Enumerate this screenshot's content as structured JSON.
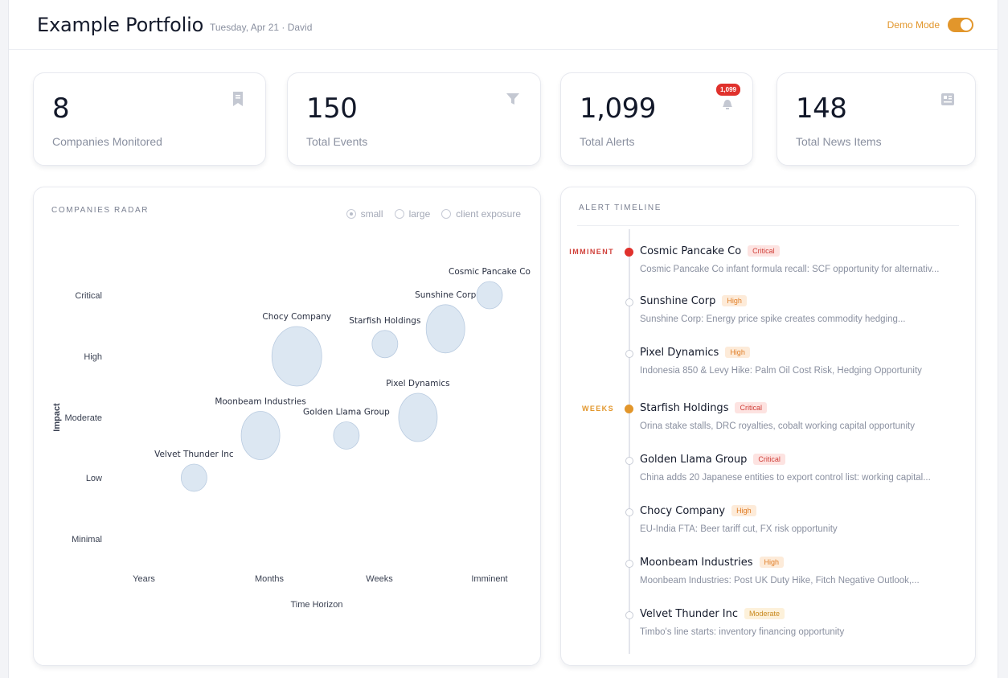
{
  "header": {
    "title": "Example Portfolio",
    "subtitle": "Tuesday, Apr 21 · David",
    "demo_label": "Demo Mode",
    "demo_on": true
  },
  "stats": [
    {
      "value": "8",
      "label": "Companies Monitored",
      "icon": "bookmark-icon"
    },
    {
      "value": "150",
      "label": "Total Events",
      "icon": "filter-icon"
    },
    {
      "value": "1,099",
      "label": "Total Alerts",
      "icon": "alert-icon",
      "badge": "1,099"
    },
    {
      "value": "148",
      "label": "Total News Items",
      "icon": "newspaper-icon"
    }
  ],
  "radar": {
    "title": "COMPANIES RADAR",
    "options": [
      {
        "label": "small",
        "selected": true
      },
      {
        "label": "large",
        "selected": false
      },
      {
        "label": "client exposure",
        "selected": false
      }
    ]
  },
  "chart_data": {
    "type": "scatter",
    "title": "",
    "xlabel": "Time Horizon",
    "ylabel": "Impact",
    "x_categories": [
      "Years",
      "Months",
      "Weeks",
      "Imminent"
    ],
    "y_categories": [
      "Minimal",
      "Low",
      "Moderate",
      "High",
      "Critical"
    ],
    "bubble_color": "#dce7f2",
    "bubble_stroke": "#b9cbe0",
    "points": [
      {
        "name": "Cosmic Pancake Co",
        "x": 3.1,
        "y": 4.0,
        "size": 1
      },
      {
        "name": "Sunshine Corp",
        "x": 2.6,
        "y": 3.45,
        "size": 2
      },
      {
        "name": "Starfish Holdings",
        "x": 2.05,
        "y": 3.2,
        "size": 1
      },
      {
        "name": "Chocy Company",
        "x": 1.25,
        "y": 3.0,
        "size": 3
      },
      {
        "name": "Pixel Dynamics",
        "x": 2.35,
        "y": 2.0,
        "size": 2
      },
      {
        "name": "Golden Llama Group",
        "x": 1.7,
        "y": 1.7,
        "size": 1
      },
      {
        "name": "Moonbeam Industries",
        "x": 0.93,
        "y": 1.7,
        "size": 2
      },
      {
        "name": "Velvet Thunder Inc",
        "x": 0.4,
        "y": 1.0,
        "size": 1
      }
    ]
  },
  "timeline": {
    "title": "ALERT TIMELINE",
    "items": [
      {
        "horizon": "IMMINENT",
        "horizon_color": "#d0403a",
        "dot": "red",
        "name": "Cosmic Pancake Co",
        "tag": "Critical",
        "tag_class": "tag-critical",
        "desc": "Cosmic Pancake Co infant formula recall: SCF opportunity for alternativ..."
      },
      {
        "horizon": "",
        "dot": "",
        "name": "Sunshine Corp",
        "tag": "High",
        "tag_class": "tag-high",
        "desc": "Sunshine Corp: Energy price spike creates commodity hedging..."
      },
      {
        "horizon": "",
        "dot": "",
        "name": "Pixel Dynamics",
        "tag": "High",
        "tag_class": "tag-high",
        "desc": "Indonesia 850 & Levy Hike: Palm Oil Cost Risk, Hedging Opportunity"
      },
      {
        "horizon": "WEEKS",
        "horizon_color": "#e2962b",
        "dot": "amber",
        "name": "Starfish Holdings",
        "tag": "Critical",
        "tag_class": "tag-critical",
        "desc": "Orina stake stalls, DRC royalties, cobalt working capital opportunity"
      },
      {
        "horizon": "",
        "dot": "",
        "name": "Golden Llama Group",
        "tag": "Critical",
        "tag_class": "tag-critical",
        "desc": "China adds 20 Japanese entities to export control list: working capital..."
      },
      {
        "horizon": "",
        "dot": "",
        "name": "Chocy Company",
        "tag": "High",
        "tag_class": "tag-high",
        "desc": "EU-India FTA: Beer tariff cut, FX risk opportunity"
      },
      {
        "horizon": "",
        "dot": "",
        "name": "Moonbeam Industries",
        "tag": "High",
        "tag_class": "tag-high",
        "desc": "Moonbeam Industries: Post UK Duty Hike, Fitch Negative Outlook,..."
      },
      {
        "horizon": "",
        "dot": "",
        "name": "Velvet Thunder Inc",
        "tag": "Moderate",
        "tag_class": "tag-moderate",
        "desc": "Timbo's line starts: inventory financing opportunity"
      }
    ]
  }
}
